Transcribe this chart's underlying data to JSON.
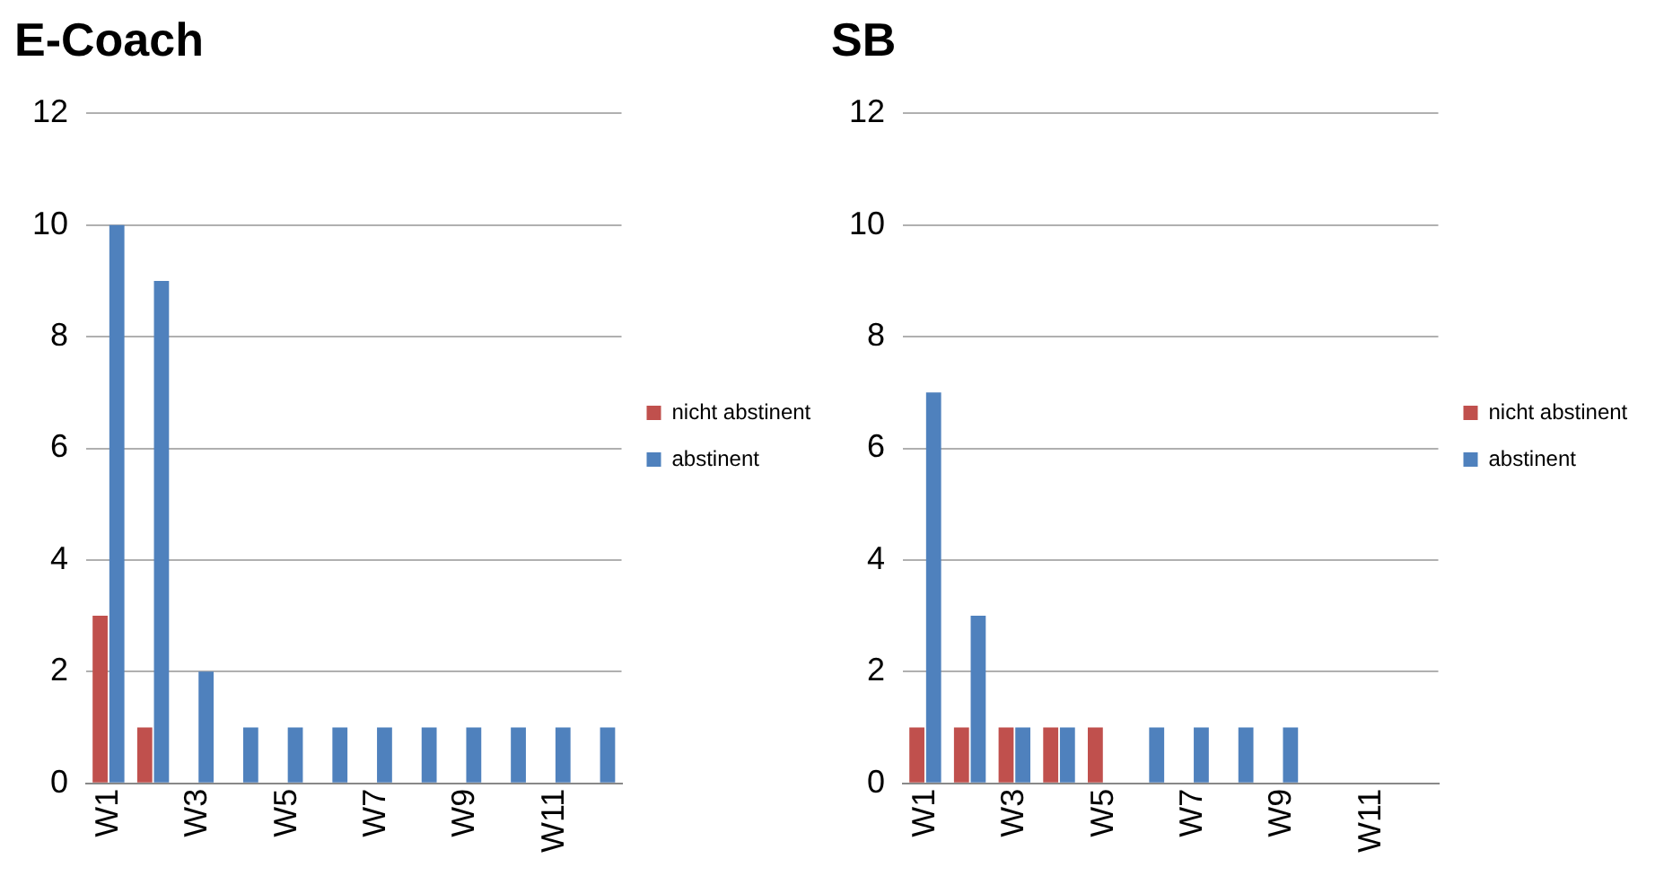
{
  "chart_data": [
    {
      "type": "bar",
      "title": "E-Coach",
      "categories": [
        "W1",
        null,
        "W3",
        null,
        "W5",
        null,
        "W7",
        null,
        "W9",
        null,
        "W11",
        null
      ],
      "series": [
        {
          "name": "nicht abstinent",
          "color": "#c0504d",
          "values": [
            3,
            1,
            0,
            0,
            0,
            0,
            0,
            0,
            0,
            0,
            0,
            0
          ]
        },
        {
          "name": "abstinent",
          "color": "#4f81bd",
          "values": [
            10,
            9,
            2,
            1,
            1,
            1,
            1,
            1,
            1,
            1,
            1,
            1
          ]
        }
      ],
      "ylim": [
        0,
        12
      ],
      "yticks": [
        0,
        2,
        4,
        6,
        8,
        10,
        12
      ],
      "grid": "y",
      "legend": "right"
    },
    {
      "type": "bar",
      "title": "SB",
      "categories": [
        "W1",
        null,
        "W3",
        null,
        "W5",
        null,
        "W7",
        null,
        "W9",
        null,
        "W11",
        null
      ],
      "series": [
        {
          "name": "nicht abstinent",
          "color": "#c0504d",
          "values": [
            1,
            1,
            1,
            1,
            1,
            0,
            0,
            0,
            0,
            0,
            0,
            0
          ]
        },
        {
          "name": "abstinent",
          "color": "#4f81bd",
          "values": [
            7,
            3,
            1,
            1,
            0,
            1,
            1,
            1,
            1,
            0,
            0,
            0
          ]
        }
      ],
      "ylim": [
        0,
        12
      ],
      "yticks": [
        0,
        2,
        4,
        6,
        8,
        10,
        12
      ],
      "grid": "y",
      "legend": "right"
    }
  ]
}
